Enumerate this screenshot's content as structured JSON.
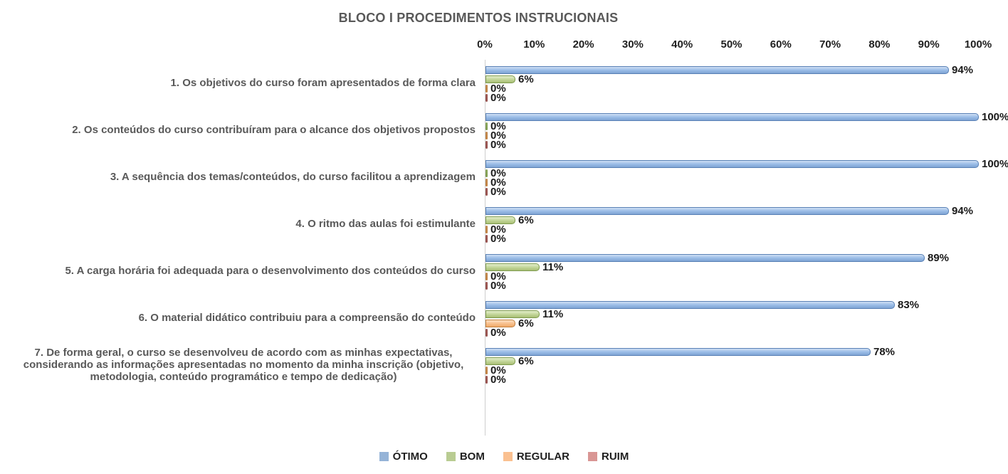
{
  "chart_data": {
    "type": "bar",
    "orientation": "horizontal",
    "title": "BLOCO I PROCEDIMENTOS INSTRUCIONAIS",
    "x_axis": {
      "position": "top",
      "min": 0,
      "max": 100,
      "ticks": [
        "0%",
        "10%",
        "20%",
        "30%",
        "40%",
        "50%",
        "60%",
        "70%",
        "80%",
        "90%",
        "100%"
      ]
    },
    "gridlines": false,
    "data_labels": true,
    "label_suffix": "%",
    "legend_position": "bottom",
    "categories": [
      "1. Os objetivos do curso foram apresentados de forma clara",
      "2. Os conteúdos do curso contribuíram para o alcance dos objetivos propostos",
      "3. A sequência dos temas/conteúdos, do curso facilitou a aprendizagem",
      "4. O ritmo das aulas foi estimulante",
      "5. A carga horária foi adequada para o desenvolvimento dos conteúdos do curso",
      "6. O material didático contribuiu para a compreensão do conteúdo",
      "7. De forma geral, o curso se desenvolveu de acordo com as minhas expectativas, considerando as informações apresentadas no momento da minha inscrição (objetivo, metodologia, conteúdo programático e tempo de dedicação)"
    ],
    "series": [
      {
        "name": "ÓTIMO",
        "legend_color": "#95B3D7",
        "fill_top": "#D0E0F4",
        "fill_mid": "#9CBEE8",
        "fill_bottom": "#7FA4D4",
        "border": "#5880B5",
        "sliver": "#7593BC",
        "values": [
          94,
          100,
          100,
          94,
          89,
          83,
          78
        ]
      },
      {
        "name": "BOM",
        "legend_color": "#B9CC92",
        "fill_top": "#E3EDCB",
        "fill_mid": "#C5D89D",
        "fill_bottom": "#A8BE74",
        "border": "#7F9C50",
        "sliver": "#8CA85E",
        "values": [
          6,
          0,
          0,
          6,
          11,
          11,
          6
        ]
      },
      {
        "name": "REGULAR",
        "legend_color": "#FAC090",
        "fill_top": "#FCE0C4",
        "fill_mid": "#F8C291",
        "fill_bottom": "#F0A968",
        "border": "#C28140",
        "sliver": "#C08A52",
        "values": [
          0,
          0,
          0,
          0,
          0,
          6,
          0
        ]
      },
      {
        "name": "RUIM",
        "legend_color": "#D99694",
        "fill_top": "#EDC9C8",
        "fill_mid": "#DA9795",
        "fill_bottom": "#C97A77",
        "border": "#97514E",
        "sliver": "#9E5A55",
        "values": [
          0,
          0,
          0,
          0,
          0,
          0,
          0
        ]
      }
    ]
  }
}
